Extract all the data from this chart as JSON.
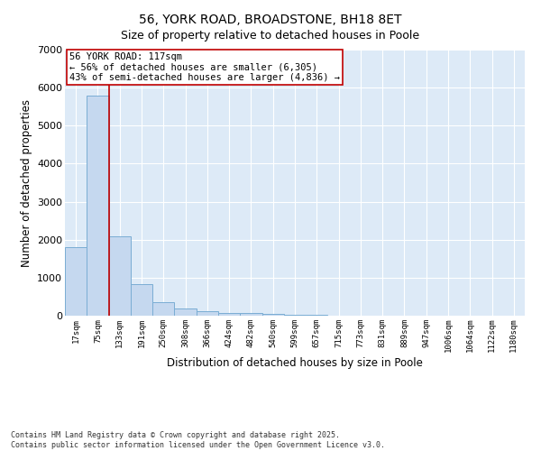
{
  "title": "56, YORK ROAD, BROADSTONE, BH18 8ET",
  "subtitle": "Size of property relative to detached houses in Poole",
  "xlabel": "Distribution of detached houses by size in Poole",
  "ylabel": "Number of detached properties",
  "bar_color": "#c5d8ef",
  "bar_edgecolor": "#7aadd4",
  "background_color": "#ddeaf7",
  "grid_color": "#c8d8e8",
  "categories": [
    "17sqm",
    "75sqm",
    "133sqm",
    "191sqm",
    "250sqm",
    "308sqm",
    "366sqm",
    "424sqm",
    "482sqm",
    "540sqm",
    "599sqm",
    "657sqm",
    "715sqm",
    "773sqm",
    "831sqm",
    "889sqm",
    "947sqm",
    "1006sqm",
    "1064sqm",
    "1122sqm",
    "1180sqm"
  ],
  "values": [
    1800,
    5800,
    2100,
    820,
    360,
    200,
    120,
    75,
    60,
    45,
    30,
    20,
    10,
    5,
    3,
    2,
    1,
    1,
    1,
    0,
    0
  ],
  "ylim": [
    0,
    7000
  ],
  "yticks": [
    0,
    1000,
    2000,
    3000,
    4000,
    5000,
    6000,
    7000
  ],
  "vline_color": "#c00000",
  "annotation_title": "56 YORK ROAD: 117sqm",
  "annotation_line1": "← 56% of detached houses are smaller (6,305)",
  "annotation_line2": "43% of semi-detached houses are larger (4,836) →",
  "annotation_box_edgecolor": "#c00000",
  "annotation_box_facecolor": "#ffffff",
  "footer_line1": "Contains HM Land Registry data © Crown copyright and database right 2025.",
  "footer_line2": "Contains public sector information licensed under the Open Government Licence v3.0."
}
